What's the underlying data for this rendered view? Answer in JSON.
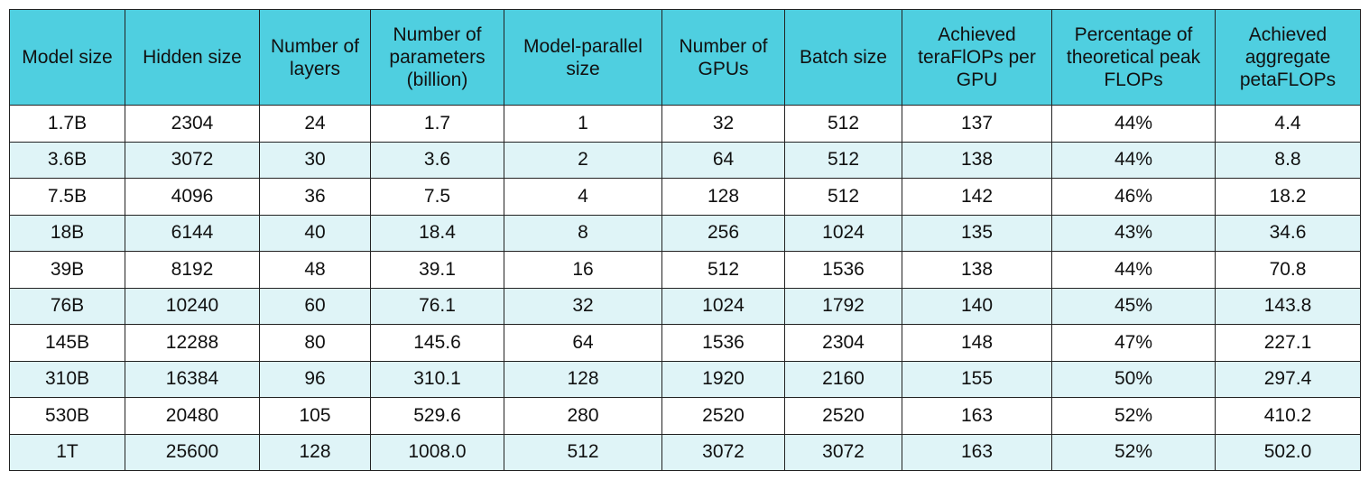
{
  "table": {
    "header": [
      "Model size",
      "Hidden size",
      "Number of layers",
      "Number of parameters (billion)",
      "Model-parallel size",
      "Number of GPUs",
      "Batch size",
      "Achieved teraFlOPs per GPU",
      "Percentage of theoretical peak FLOPs",
      "Achieved aggregate petaFLOPs"
    ],
    "rows": [
      [
        "1.7B",
        "2304",
        "24",
        "1.7",
        "1",
        "32",
        "512",
        "137",
        "44%",
        "4.4"
      ],
      [
        "3.6B",
        "3072",
        "30",
        "3.6",
        "2",
        "64",
        "512",
        "138",
        "44%",
        "8.8"
      ],
      [
        "7.5B",
        "4096",
        "36",
        "7.5",
        "4",
        "128",
        "512",
        "142",
        "46%",
        "18.2"
      ],
      [
        "18B",
        "6144",
        "40",
        "18.4",
        "8",
        "256",
        "1024",
        "135",
        "43%",
        "34.6"
      ],
      [
        "39B",
        "8192",
        "48",
        "39.1",
        "16",
        "512",
        "1536",
        "138",
        "44%",
        "70.8"
      ],
      [
        "76B",
        "10240",
        "60",
        "76.1",
        "32",
        "1024",
        "1792",
        "140",
        "45%",
        "143.8"
      ],
      [
        "145B",
        "12288",
        "80",
        "145.6",
        "64",
        "1536",
        "2304",
        "148",
        "47%",
        "227.1"
      ],
      [
        "310B",
        "16384",
        "96",
        "310.1",
        "128",
        "1920",
        "2160",
        "155",
        "50%",
        "297.4"
      ],
      [
        "530B",
        "20480",
        "105",
        "529.6",
        "280",
        "2520",
        "2520",
        "163",
        "52%",
        "410.2"
      ],
      [
        "1T",
        "25600",
        "128",
        "1008.0",
        "512",
        "3072",
        "3072",
        "163",
        "52%",
        "502.0"
      ]
    ]
  }
}
